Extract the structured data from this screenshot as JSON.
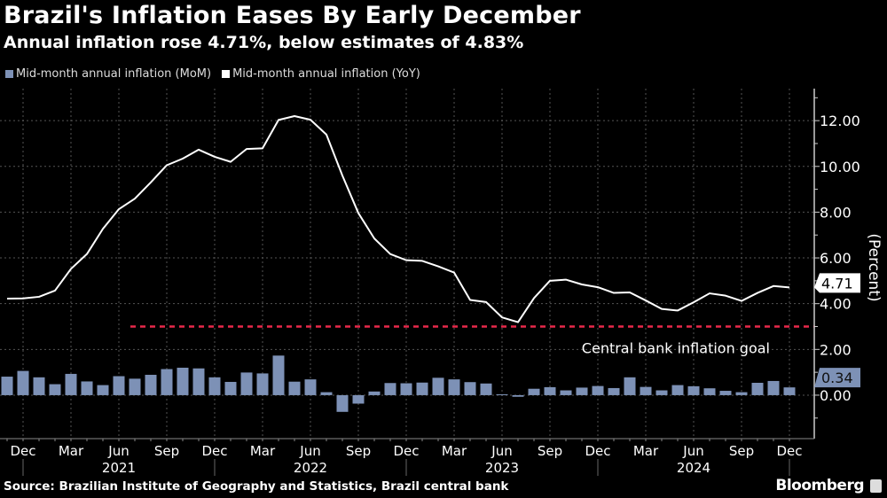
{
  "header": {
    "title": "Brazil's Inflation Eases By Early December",
    "subtitle": "Annual inflation rose 4.71%, below estimates of 4.83%"
  },
  "footer": {
    "source": "Source: Brazilian Institute of Geography and Statistics, Brazil central bank",
    "brand": "Bloomberg"
  },
  "chart_data": {
    "type": "bar+line",
    "categories": [
      "Nov 2020",
      "Dec 2020",
      "Jan 2021",
      "Feb 2021",
      "Mar 2021",
      "Apr 2021",
      "May 2021",
      "Jun 2021",
      "Jul 2021",
      "Aug 2021",
      "Sep 2021",
      "Oct 2021",
      "Nov 2021",
      "Dec 2021",
      "Jan 2022",
      "Feb 2022",
      "Mar 2022",
      "Apr 2022",
      "May 2022",
      "Jun 2022",
      "Jul 2022",
      "Aug 2022",
      "Sep 2022",
      "Oct 2022",
      "Nov 2022",
      "Dec 2022",
      "Jan 2023",
      "Feb 2023",
      "Mar 2023",
      "Apr 2023",
      "May 2023",
      "Jun 2023",
      "Jul 2023",
      "Aug 2023",
      "Sep 2023",
      "Oct 2023",
      "Nov 2023",
      "Dec 2023",
      "Jan 2024",
      "Feb 2024",
      "Mar 2024",
      "Apr 2024",
      "May 2024",
      "Jun 2024",
      "Jul 2024",
      "Aug 2024",
      "Sep 2024",
      "Oct 2024",
      "Nov 2024",
      "Dec 2024"
    ],
    "series": [
      {
        "name": "Mid-month annual inflation (MoM)",
        "type": "bar",
        "color": "#7d91b6",
        "values": [
          0.81,
          1.06,
          0.78,
          0.48,
          0.93,
          0.6,
          0.44,
          0.83,
          0.72,
          0.89,
          1.14,
          1.2,
          1.17,
          0.78,
          0.58,
          0.99,
          0.95,
          1.73,
          0.59,
          0.69,
          0.13,
          -0.73,
          -0.37,
          0.16,
          0.53,
          0.52,
          0.55,
          0.76,
          0.69,
          0.57,
          0.51,
          0.04,
          -0.07,
          0.28,
          0.35,
          0.21,
          0.33,
          0.4,
          0.31,
          0.78,
          0.36,
          0.21,
          0.44,
          0.39,
          0.3,
          0.19,
          0.13,
          0.54,
          0.62,
          0.34
        ],
        "last_label": "0.34"
      },
      {
        "name": "Mid-month annual inflation (YoY)",
        "type": "line",
        "color": "#ffffff",
        "values": [
          4.22,
          4.23,
          4.3,
          4.57,
          5.52,
          6.17,
          7.27,
          8.13,
          8.59,
          9.3,
          10.05,
          10.34,
          10.73,
          10.42,
          10.2,
          10.76,
          10.79,
          12.03,
          12.2,
          12.04,
          11.39,
          9.6,
          7.96,
          6.85,
          6.17,
          5.9,
          5.87,
          5.63,
          5.36,
          4.16,
          4.07,
          3.4,
          3.19,
          4.24,
          5.0,
          5.05,
          4.84,
          4.72,
          4.47,
          4.49,
          4.14,
          3.77,
          3.7,
          4.06,
          4.45,
          4.35,
          4.12,
          4.47,
          4.77,
          4.71
        ],
        "last_label": "4.71"
      }
    ],
    "reference_line": {
      "label": "Central bank inflation goal",
      "value": 3.0,
      "color": "#e8294a",
      "from": "Jul 2021"
    },
    "x_tick_labels": [
      {
        "month": "Dec 2020",
        "label": "Dec"
      },
      {
        "month": "Mar 2021",
        "label": "Mar"
      },
      {
        "month": "Jun 2021",
        "label": "Jun"
      },
      {
        "month": "Sep 2021",
        "label": "Sep"
      },
      {
        "month": "Dec 2021",
        "label": "Dec"
      },
      {
        "month": "Mar 2022",
        "label": "Mar"
      },
      {
        "month": "Jun 2022",
        "label": "Jun"
      },
      {
        "month": "Sep 2022",
        "label": "Sep"
      },
      {
        "month": "Dec 2022",
        "label": "Dec"
      },
      {
        "month": "Mar 2023",
        "label": "Mar"
      },
      {
        "month": "Jun 2023",
        "label": "Jun"
      },
      {
        "month": "Sep 2023",
        "label": "Sep"
      },
      {
        "month": "Dec 2023",
        "label": "Dec"
      },
      {
        "month": "Mar 2024",
        "label": "Mar"
      },
      {
        "month": "Jun 2024",
        "label": "Jun"
      },
      {
        "month": "Sep 2024",
        "label": "Sep"
      },
      {
        "month": "Dec 2024",
        "label": "Dec"
      }
    ],
    "year_labels": [
      {
        "month": "Jun 2021",
        "label": "2021"
      },
      {
        "month": "Jun 2022",
        "label": "2022"
      },
      {
        "month": "Jun 2023",
        "label": "2023"
      },
      {
        "month": "Jun 2024",
        "label": "2024"
      }
    ],
    "y_ticks": [
      "0.00",
      "2.00",
      "4.00",
      "6.00",
      "8.00",
      "10.00",
      "12.00"
    ],
    "ylabel": "(Percent)",
    "ylim": [
      -1.9,
      13.4
    ],
    "y_axis_side": "right",
    "grid": true,
    "legend": "top-left",
    "background": "#000000"
  }
}
